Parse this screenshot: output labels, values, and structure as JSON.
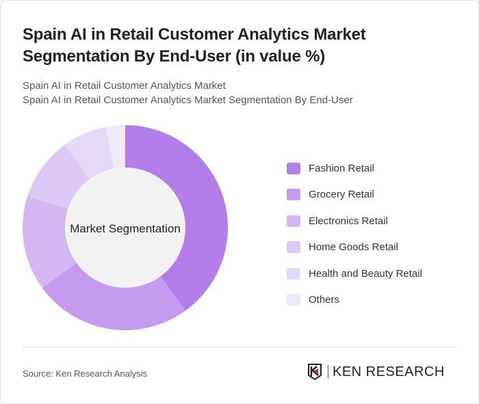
{
  "title": "Spain AI in Retail Customer Analytics Market Segmentation By End-User (in value %)",
  "subtitle_lines": [
    "Spain AI in Retail Customer Analytics Market",
    "Spain AI in Retail Customer Analytics Market Segmentation By End-User"
  ],
  "source": "Source: Ken Research Analysis",
  "logo_text": "KEN RESEARCH",
  "chart_data": {
    "type": "pie",
    "donut": true,
    "center_label": "Market Segmentation",
    "categories": [
      "Fashion Retail",
      "Grocery Retail",
      "Electronics Retail",
      "Home Goods Retail",
      "Health and Beauty Retail",
      "Others"
    ],
    "values": [
      40,
      25,
      15,
      10,
      7,
      3
    ],
    "colors": [
      "#b47eea",
      "#c49bee",
      "#d4b7f2",
      "#dec8f5",
      "#e6d8f7",
      "#f0e9fa"
    ],
    "legend_position": "right"
  }
}
